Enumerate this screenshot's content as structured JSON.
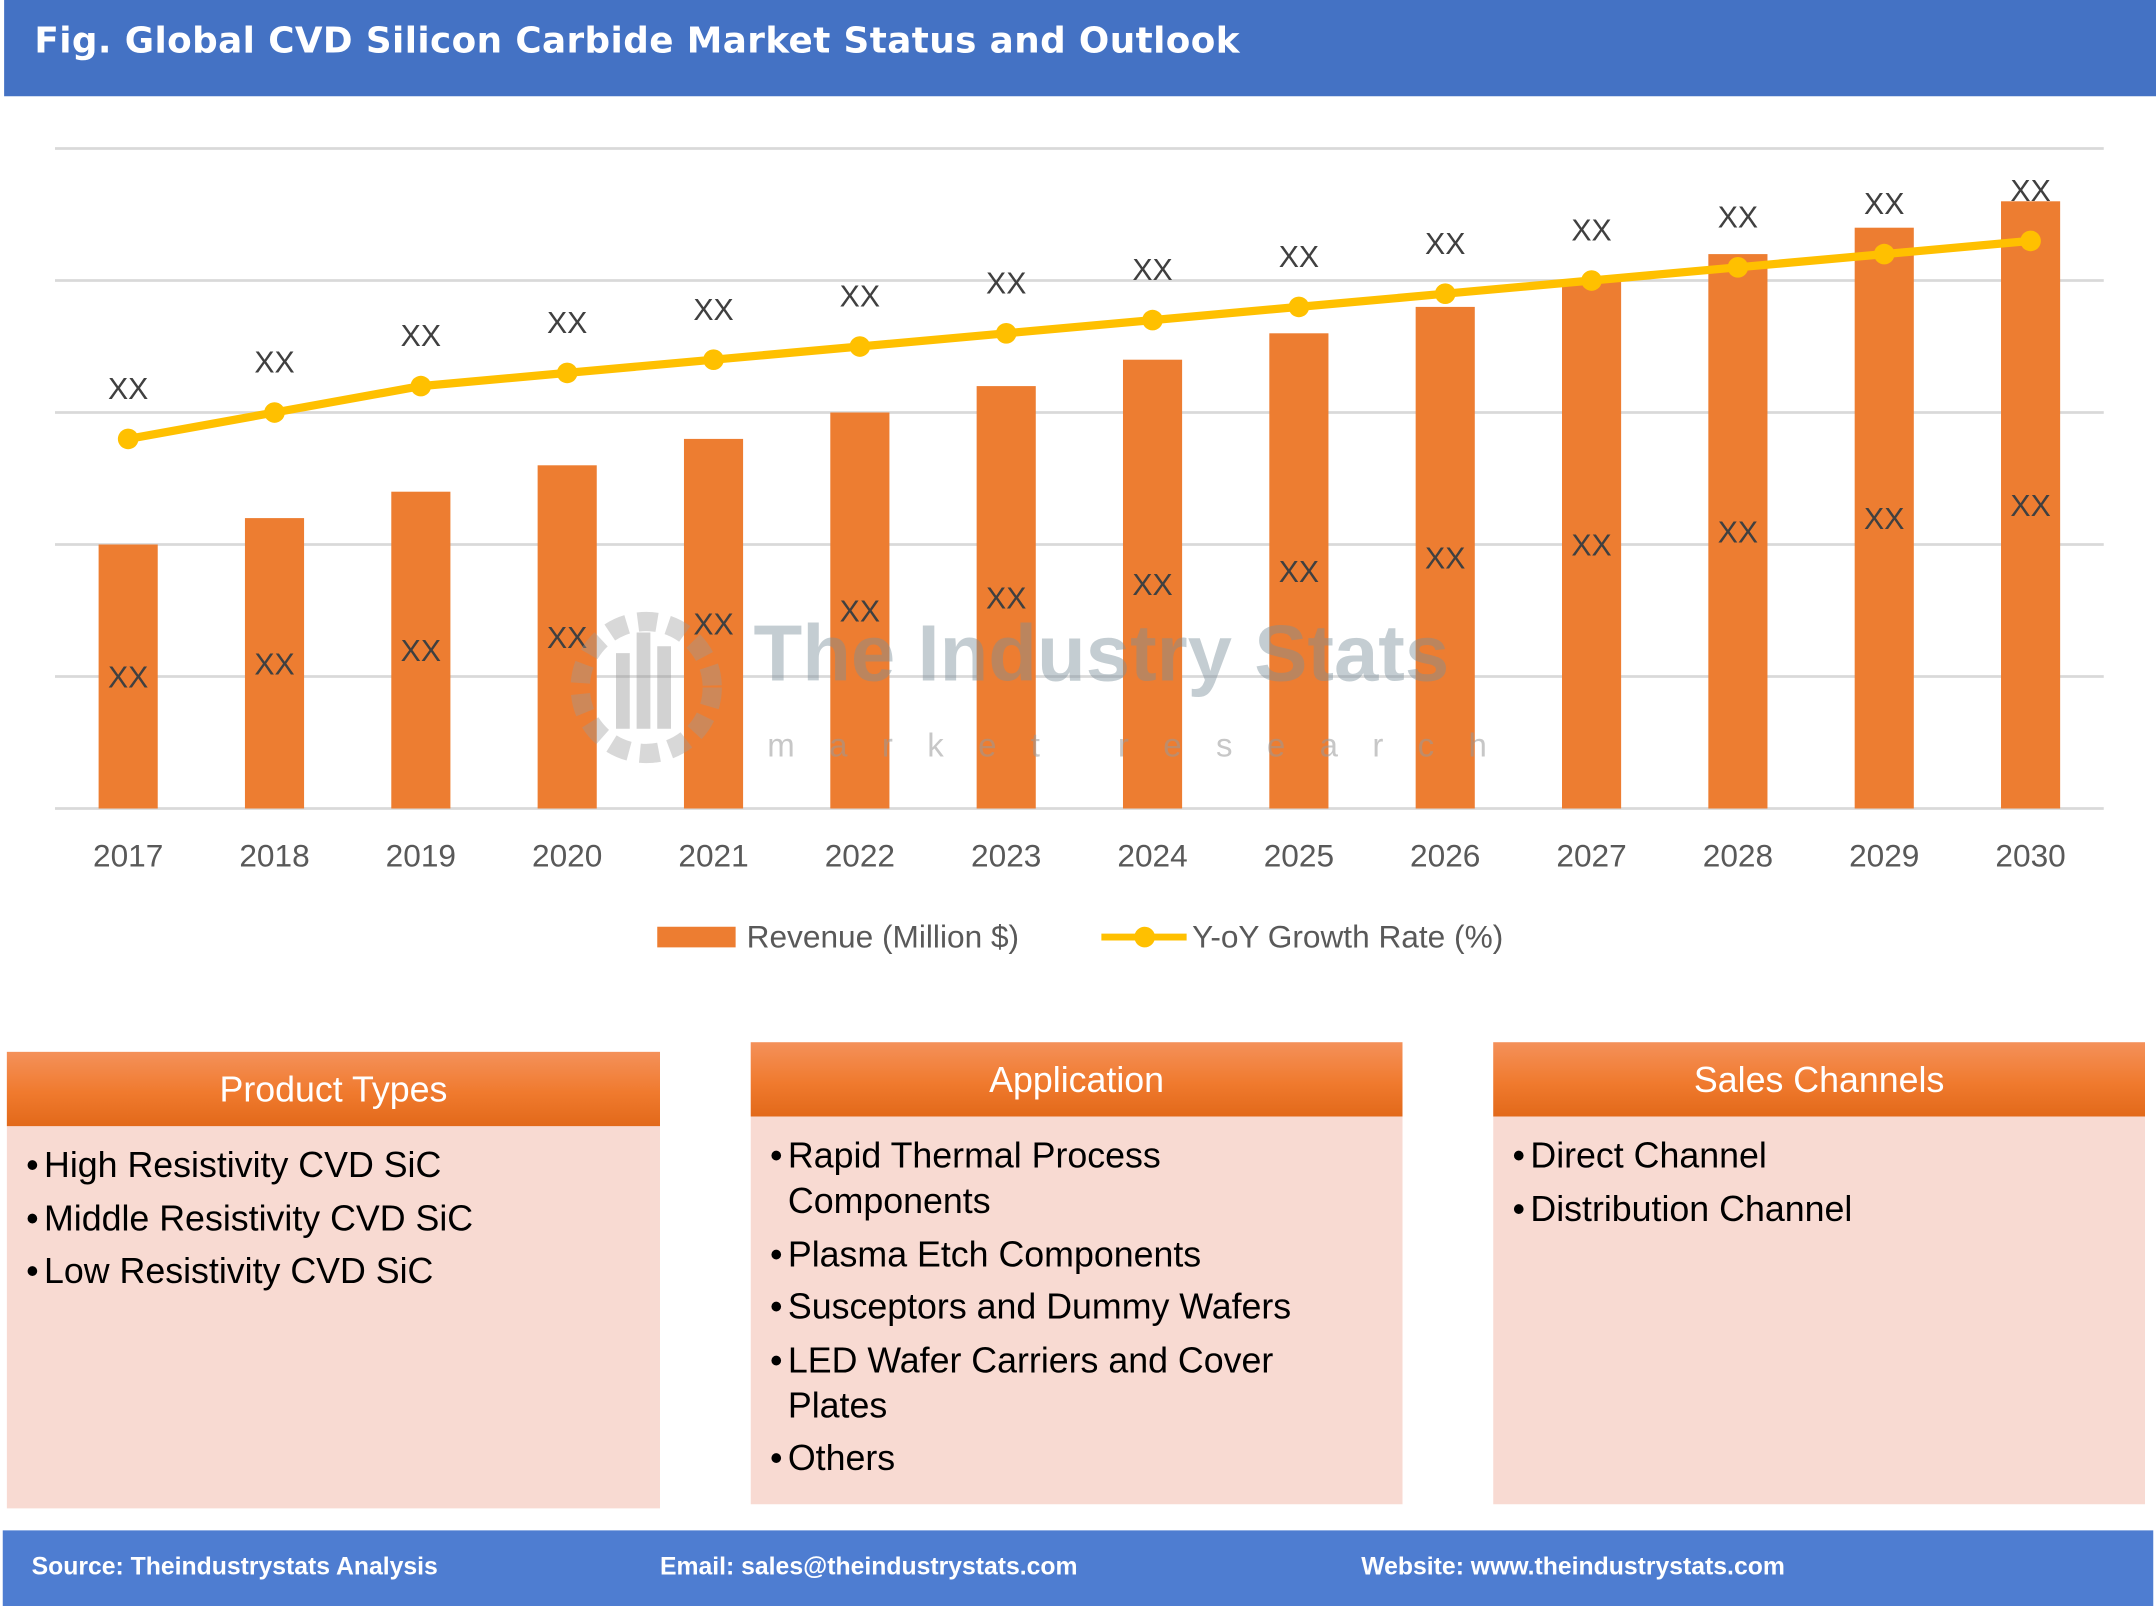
{
  "title": "Fig. Global CVD Silicon Carbide Market Status and Outlook",
  "colors": {
    "title_bar": "#4472C4",
    "bar": "#ED7D31",
    "line": "#FFC000",
    "box_body": "#F8DAD2",
    "box_header": "#F07A2E",
    "footer": "#4E7DD1"
  },
  "chart_data": {
    "type": "bar+line",
    "categories": [
      "2017",
      "2018",
      "2019",
      "2020",
      "2021",
      "2022",
      "2023",
      "2024",
      "2025",
      "2026",
      "2027",
      "2028",
      "2029",
      "2030"
    ],
    "series": [
      {
        "name": "Revenue (Million $)",
        "type": "bar",
        "values": [
          2.0,
          2.2,
          2.4,
          2.6,
          2.8,
          3.0,
          3.2,
          3.4,
          3.6,
          3.8,
          4.0,
          4.2,
          4.4,
          4.6
        ],
        "labels": [
          "XX",
          "XX",
          "XX",
          "XX",
          "XX",
          "XX",
          "XX",
          "XX",
          "XX",
          "XX",
          "XX",
          "XX",
          "XX",
          "XX"
        ]
      },
      {
        "name": "Y-oY Growth Rate (%)",
        "type": "line",
        "values": [
          2.8,
          3.0,
          3.2,
          3.3,
          3.4,
          3.5,
          3.6,
          3.7,
          3.8,
          3.9,
          4.0,
          4.1,
          4.2,
          4.3
        ],
        "labels": [
          "XX",
          "XX",
          "XX",
          "XX",
          "XX",
          "XX",
          "XX",
          "XX",
          "XX",
          "XX",
          "XX",
          "XX",
          "XX",
          "XX"
        ]
      }
    ],
    "ylim": [
      0,
      5
    ],
    "grid": true,
    "y_axis_labels_shown": false,
    "legend_position": "bottom"
  },
  "watermark": {
    "name": "The Industry Stats",
    "tagline": "market research"
  },
  "boxes": [
    {
      "title": "Product Types",
      "items": [
        "High Resistivity CVD SiC",
        "Middle Resistivity CVD SiC",
        "Low Resistivity CVD SiC"
      ]
    },
    {
      "title": "Application",
      "items": [
        "Rapid Thermal Process Components",
        "Plasma Etch Components",
        "Susceptors and Dummy Wafers",
        "LED Wafer Carriers and Cover Plates",
        "Others"
      ]
    },
    {
      "title": "Sales Channels",
      "items": [
        "Direct Channel",
        "Distribution Channel"
      ]
    }
  ],
  "footer": {
    "source": "Source: Theindustrystats Analysis",
    "email": "Email: sales@theindustrystats.com",
    "website": "Website: www.theindustrystats.com"
  }
}
